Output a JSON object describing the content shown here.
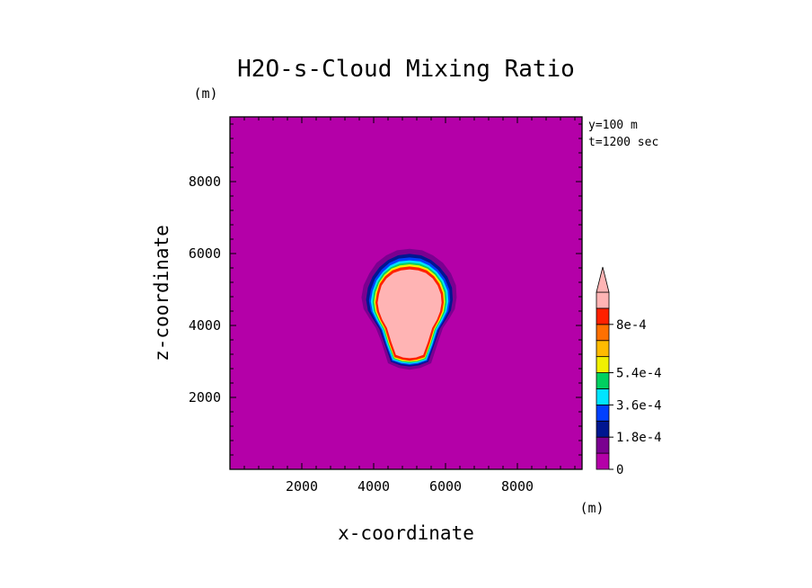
{
  "chart_data": {
    "type": "heatmap",
    "title": "H2O-s-Cloud Mixing Ratio",
    "xlabel": "x-coordinate",
    "ylabel": "z-coordinate",
    "x_unit": "(m)",
    "y_unit": "(m)",
    "annotations": [
      "y=100 m",
      "t=1200 sec"
    ],
    "xlim": [
      0,
      9800
    ],
    "ylim": [
      0,
      9800
    ],
    "xticks": [
      2000,
      4000,
      6000,
      8000
    ],
    "yticks": [
      2000,
      4000,
      6000,
      8000
    ],
    "xtick_labels": [
      "2000",
      "4000",
      "6000",
      "8000"
    ],
    "ytick_labels": [
      "2000",
      "4000",
      "6000",
      "8000"
    ],
    "background_level": 0,
    "colorbar": {
      "levels": [
        0,
        9e-05,
        0.00018,
        0.00027,
        0.00036,
        0.00045,
        0.00054,
        0.00063,
        0.00072,
        0.0008
      ],
      "labels": [
        "0",
        "1.8e-4",
        "3.6e-4",
        "5.4e-4",
        "8e-4"
      ],
      "label_levels": [
        0,
        0.00018,
        0.00036,
        0.00054,
        0.0008
      ],
      "colors": [
        "#b400a8",
        "#7a0090",
        "#001690",
        "#0040ff",
        "#00e4ff",
        "#00d060",
        "#f0f000",
        "#ffbb00",
        "#ff7000",
        "#ff2000",
        "#ffb4b4"
      ],
      "extend": "max"
    },
    "contours": [
      {
        "level": 4e-05,
        "color": "#7a0090",
        "outline": [
          [
            5000,
            6130
          ],
          [
            5350,
            6090
          ],
          [
            5650,
            5950
          ],
          [
            5930,
            5740
          ],
          [
            6150,
            5450
          ],
          [
            6290,
            5120
          ],
          [
            6310,
            4780
          ],
          [
            6260,
            4460
          ],
          [
            6110,
            4200
          ],
          [
            5930,
            3930
          ],
          [
            5800,
            3560
          ],
          [
            5600,
            2950
          ],
          [
            5300,
            2820
          ],
          [
            5000,
            2770
          ],
          [
            4700,
            2820
          ],
          [
            4400,
            2950
          ],
          [
            4210,
            3560
          ],
          [
            4060,
            3930
          ],
          [
            3880,
            4200
          ],
          [
            3720,
            4460
          ],
          [
            3660,
            4780
          ],
          [
            3720,
            5120
          ],
          [
            3880,
            5450
          ],
          [
            4080,
            5740
          ],
          [
            4350,
            5950
          ],
          [
            4650,
            6090
          ]
        ]
      },
      {
        "level": 0.00013,
        "color": "#001690",
        "outline": [
          [
            5000,
            5990
          ],
          [
            5320,
            5950
          ],
          [
            5600,
            5820
          ],
          [
            5840,
            5620
          ],
          [
            6050,
            5360
          ],
          [
            6180,
            5050
          ],
          [
            6200,
            4720
          ],
          [
            6150,
            4420
          ],
          [
            6010,
            4170
          ],
          [
            5840,
            3900
          ],
          [
            5700,
            3500
          ],
          [
            5520,
            2990
          ],
          [
            5250,
            2890
          ],
          [
            5000,
            2860
          ],
          [
            4750,
            2890
          ],
          [
            4480,
            2990
          ],
          [
            4300,
            3500
          ],
          [
            4160,
            3900
          ],
          [
            3990,
            4170
          ],
          [
            3840,
            4420
          ],
          [
            3790,
            4720
          ],
          [
            3840,
            5050
          ],
          [
            3970,
            5360
          ],
          [
            4160,
            5620
          ],
          [
            4400,
            5820
          ],
          [
            4680,
            5950
          ]
        ]
      },
      {
        "level": 0.00022,
        "color": "#0040ff",
        "outline": [
          [
            5000,
            5890
          ],
          [
            5300,
            5860
          ],
          [
            5560,
            5740
          ],
          [
            5790,
            5550
          ],
          [
            5980,
            5300
          ],
          [
            6110,
            4990
          ],
          [
            6130,
            4690
          ],
          [
            6080,
            4400
          ],
          [
            5950,
            4150
          ],
          [
            5790,
            3880
          ],
          [
            5660,
            3480
          ],
          [
            5490,
            3020
          ],
          [
            5240,
            2930
          ],
          [
            5000,
            2900
          ],
          [
            4760,
            2930
          ],
          [
            4510,
            3020
          ],
          [
            4340,
            3480
          ],
          [
            4210,
            3880
          ],
          [
            4050,
            4150
          ],
          [
            3920,
            4400
          ],
          [
            3870,
            4690
          ],
          [
            3920,
            4990
          ],
          [
            4040,
            5300
          ],
          [
            4220,
            5550
          ],
          [
            4440,
            5740
          ],
          [
            4700,
            5860
          ]
        ]
      },
      {
        "level": 0.00036,
        "color": "#00e4ff",
        "outline": [
          [
            5000,
            5810
          ],
          [
            5290,
            5780
          ],
          [
            5540,
            5670
          ],
          [
            5760,
            5490
          ],
          [
            5940,
            5250
          ],
          [
            6060,
            4960
          ],
          [
            6080,
            4670
          ],
          [
            6030,
            4390
          ],
          [
            5910,
            4140
          ],
          [
            5760,
            3880
          ],
          [
            5630,
            3470
          ],
          [
            5470,
            3040
          ],
          [
            5230,
            2960
          ],
          [
            5000,
            2930
          ],
          [
            4770,
            2960
          ],
          [
            4530,
            3040
          ],
          [
            4370,
            3470
          ],
          [
            4240,
            3880
          ],
          [
            4090,
            4140
          ],
          [
            3970,
            4390
          ],
          [
            3920,
            4670
          ],
          [
            3970,
            4960
          ],
          [
            4080,
            5250
          ],
          [
            4260,
            5490
          ],
          [
            4460,
            5670
          ],
          [
            4710,
            5780
          ]
        ]
      },
      {
        "level": 0.00045,
        "color": "#00d060",
        "outline": [
          [
            5000,
            5750
          ],
          [
            5280,
            5720
          ],
          [
            5520,
            5620
          ],
          [
            5730,
            5450
          ],
          [
            5900,
            5220
          ],
          [
            6010,
            4940
          ],
          [
            6030,
            4660
          ],
          [
            5990,
            4390
          ],
          [
            5870,
            4140
          ],
          [
            5730,
            3890
          ],
          [
            5600,
            3480
          ],
          [
            5450,
            3070
          ],
          [
            5220,
            2990
          ],
          [
            5000,
            2960
          ],
          [
            4780,
            2990
          ],
          [
            4550,
            3070
          ],
          [
            4400,
            3480
          ],
          [
            4270,
            3890
          ],
          [
            4130,
            4140
          ],
          [
            4010,
            4390
          ],
          [
            3970,
            4660
          ],
          [
            4010,
            4940
          ],
          [
            4120,
            5220
          ],
          [
            4270,
            5450
          ],
          [
            4480,
            5620
          ],
          [
            4720,
            5720
          ]
        ]
      },
      {
        "level": 0.00063,
        "color": "#f0f000",
        "outline": [
          [
            5000,
            5700
          ],
          [
            5270,
            5670
          ],
          [
            5500,
            5580
          ],
          [
            5710,
            5410
          ],
          [
            5870,
            5190
          ],
          [
            5970,
            4920
          ],
          [
            5990,
            4650
          ],
          [
            5950,
            4390
          ],
          [
            5840,
            4140
          ],
          [
            5700,
            3890
          ],
          [
            5580,
            3490
          ],
          [
            5430,
            3090
          ],
          [
            5210,
            3010
          ],
          [
            5000,
            2990
          ],
          [
            4790,
            3010
          ],
          [
            4570,
            3090
          ],
          [
            4420,
            3490
          ],
          [
            4300,
            3890
          ],
          [
            4160,
            4140
          ],
          [
            4050,
            4390
          ],
          [
            4010,
            4650
          ],
          [
            4050,
            4920
          ],
          [
            4150,
            5190
          ],
          [
            4300,
            5410
          ],
          [
            4500,
            5580
          ],
          [
            4730,
            5670
          ]
        ]
      },
      {
        "level": 0.00072,
        "color": "#ff2000",
        "outline": [
          [
            5000,
            5640
          ],
          [
            5260,
            5610
          ],
          [
            5480,
            5530
          ],
          [
            5680,
            5370
          ],
          [
            5830,
            5160
          ],
          [
            5930,
            4900
          ],
          [
            5950,
            4640
          ],
          [
            5910,
            4390
          ],
          [
            5810,
            4150
          ],
          [
            5680,
            3910
          ],
          [
            5560,
            3510
          ],
          [
            5420,
            3120
          ],
          [
            5200,
            3050
          ],
          [
            5000,
            3020
          ],
          [
            4800,
            3050
          ],
          [
            4580,
            3120
          ],
          [
            4440,
            3510
          ],
          [
            4320,
            3910
          ],
          [
            4190,
            4150
          ],
          [
            4090,
            4390
          ],
          [
            4050,
            4640
          ],
          [
            4090,
            4900
          ],
          [
            4170,
            5160
          ],
          [
            4320,
            5370
          ],
          [
            4520,
            5530
          ],
          [
            4740,
            5610
          ]
        ]
      },
      {
        "level": 0.0008,
        "color": "#ffb4b4",
        "outline": [
          [
            5000,
            5560
          ],
          [
            5240,
            5530
          ],
          [
            5450,
            5460
          ],
          [
            5640,
            5310
          ],
          [
            5780,
            5110
          ],
          [
            5870,
            4870
          ],
          [
            5890,
            4630
          ],
          [
            5850,
            4390
          ],
          [
            5760,
            4160
          ],
          [
            5630,
            3930
          ],
          [
            5510,
            3540
          ],
          [
            5380,
            3180
          ],
          [
            5180,
            3110
          ],
          [
            5000,
            3090
          ],
          [
            4820,
            3110
          ],
          [
            4620,
            3180
          ],
          [
            4490,
            3540
          ],
          [
            4370,
            3930
          ],
          [
            4240,
            4160
          ],
          [
            4150,
            4390
          ],
          [
            4110,
            4630
          ],
          [
            4150,
            4870
          ],
          [
            4220,
            5110
          ],
          [
            4360,
            5310
          ],
          [
            4550,
            5460
          ],
          [
            4760,
            5530
          ]
        ]
      }
    ]
  }
}
